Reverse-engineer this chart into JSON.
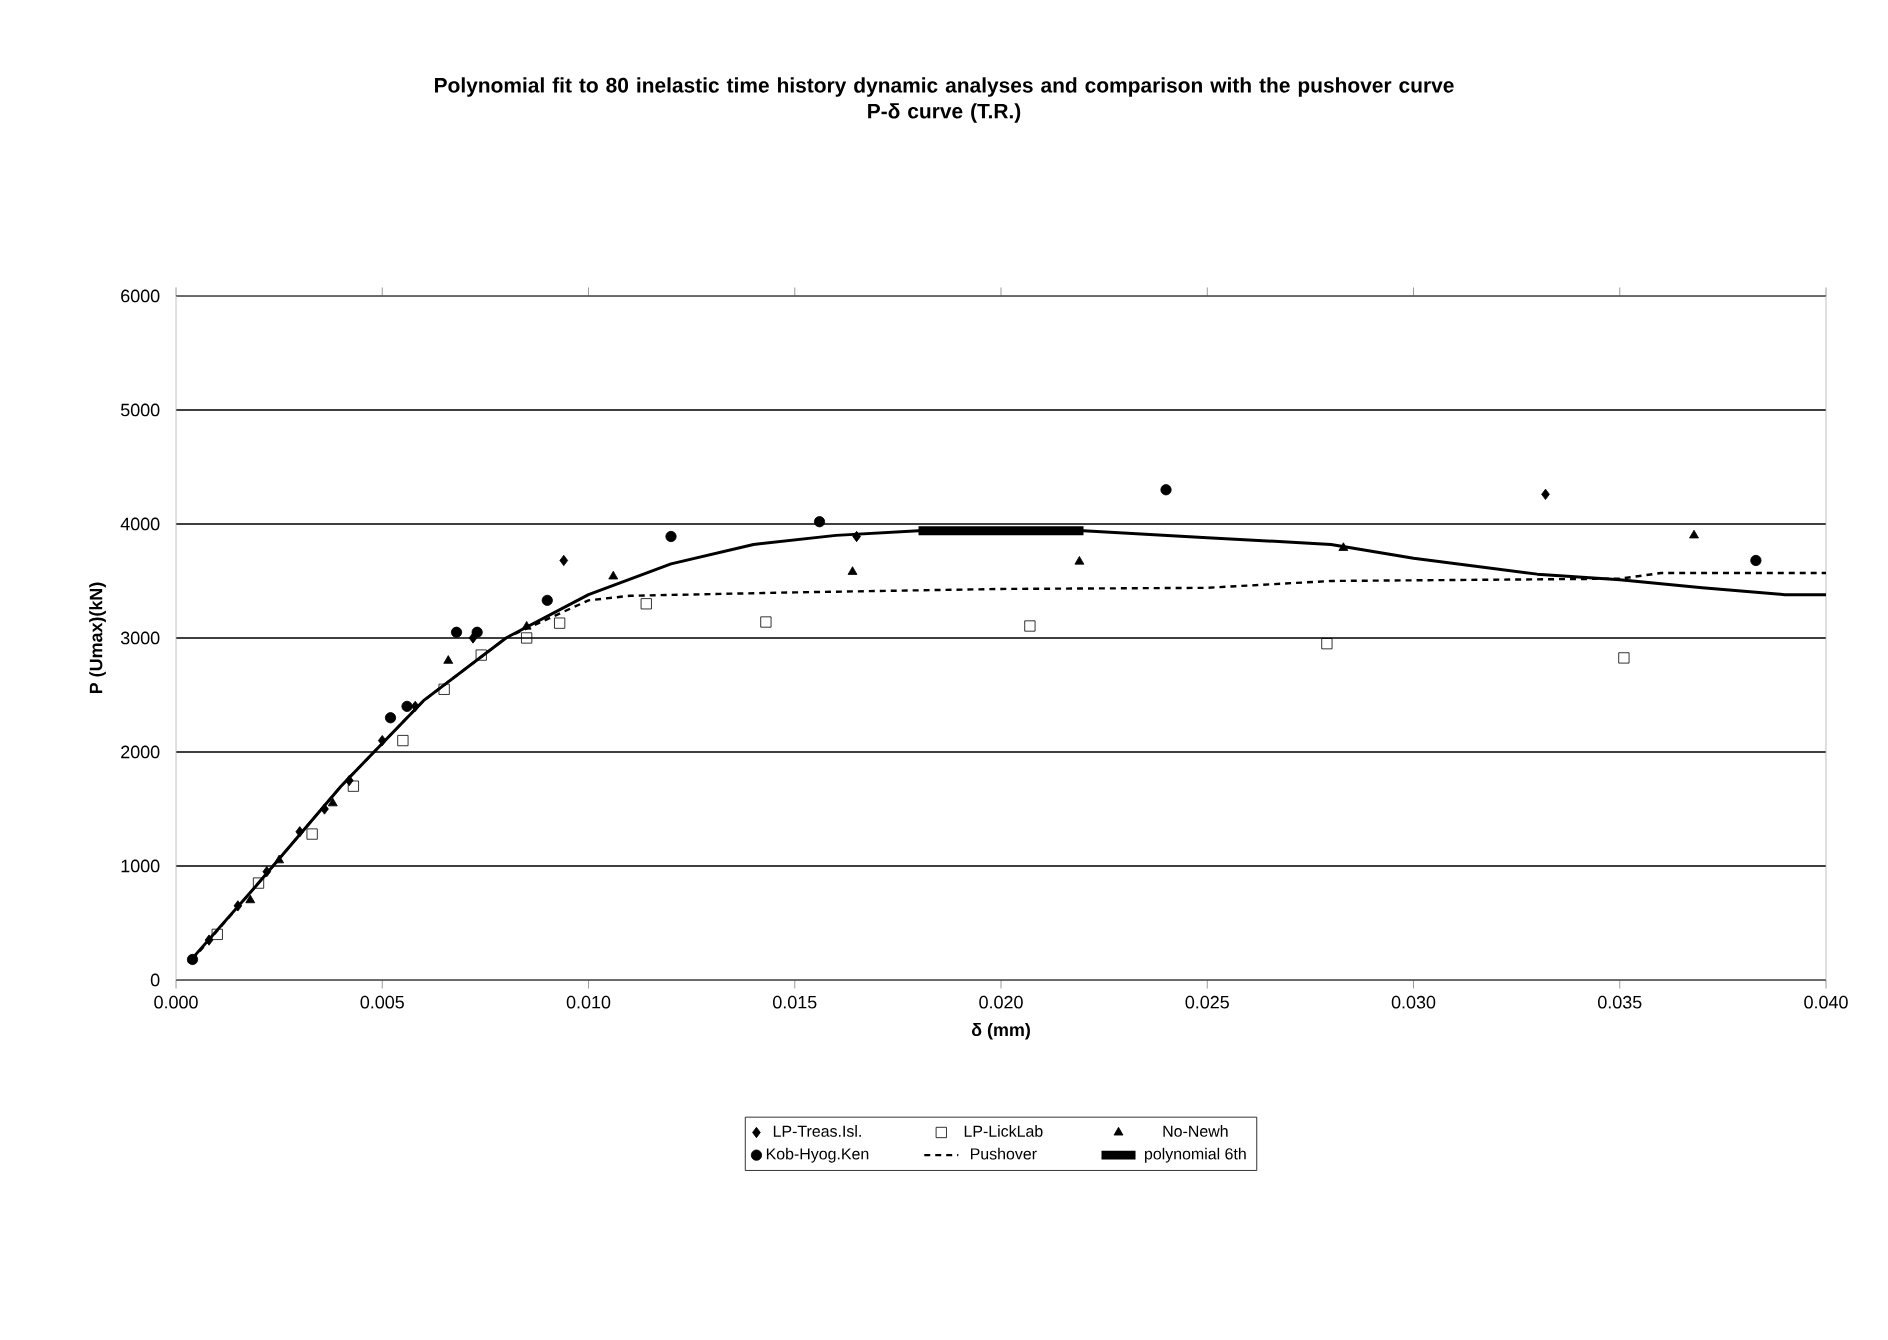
{
  "chart_data": {
    "type": "scatter",
    "title": "Polynomial fit to 80 inelastic time history dynamic analyses and comparison with the pushover curve",
    "subtitle": "P-δ curve (T.R.)",
    "xlabel": "δ (mm)",
    "ylabel": "P (Umax)(kN)",
    "xlim": [
      0,
      0.04
    ],
    "ylim": [
      0,
      6000
    ],
    "xticks": [
      {
        "value": 0,
        "label": "0.000"
      },
      {
        "value": 0.005,
        "label": "0.005"
      },
      {
        "value": 0.01,
        "label": "0.010"
      },
      {
        "value": 0.015,
        "label": "0.015"
      },
      {
        "value": 0.02,
        "label": "0.020"
      },
      {
        "value": 0.025,
        "label": "0.025"
      },
      {
        "value": 0.03,
        "label": "0.030"
      },
      {
        "value": 0.035,
        "label": "0.035"
      },
      {
        "value": 0.04,
        "label": "0.040"
      }
    ],
    "yticks": [
      0,
      1000,
      2000,
      3000,
      4000,
      5000,
      6000
    ],
    "grid": "y",
    "legend": "bottom",
    "series": [
      {
        "name": "LP-Treas.Isl.",
        "marker": "diamond",
        "color": "#000000",
        "x": [
          0.0008,
          0.0015,
          0.0022,
          0.003,
          0.0036,
          0.0042,
          0.005,
          0.0058,
          0.0072,
          0.0094,
          0.0165,
          0.0332
        ],
        "values": [
          350,
          650,
          950,
          1300,
          1500,
          1750,
          2100,
          2400,
          3000,
          3680,
          3890,
          4260
        ]
      },
      {
        "name": "LP-LickLab",
        "marker": "square",
        "color": "#000000",
        "x": [
          0.001,
          0.002,
          0.0033,
          0.0043,
          0.0055,
          0.0065,
          0.0074,
          0.0085,
          0.0093,
          0.0114,
          0.0143,
          0.0207,
          0.0279,
          0.0351
        ],
        "values": [
          400,
          850,
          1280,
          1700,
          2100,
          2550,
          2850,
          3000,
          3130,
          3300,
          3140,
          3105,
          2950,
          2825
        ]
      },
      {
        "name": "No-Newh",
        "marker": "triangle",
        "color": "#000000",
        "x": [
          0.0018,
          0.0025,
          0.0038,
          0.0066,
          0.0085,
          0.0106,
          0.0164,
          0.0219,
          0.0283,
          0.0368
        ],
        "values": [
          700,
          1050,
          1550,
          2800,
          3100,
          3540,
          3580,
          3670,
          3790,
          3900
        ]
      },
      {
        "name": "Kob-Hyog.Ken",
        "marker": "circle",
        "color": "#000000",
        "x": [
          0.0004,
          0.0052,
          0.0056,
          0.0068,
          0.0073,
          0.009,
          0.012,
          0.0156,
          0.024,
          0.0383
        ],
        "values": [
          180,
          2300,
          2400,
          3050,
          3050,
          3330,
          3890,
          4020,
          4300,
          3680
        ]
      },
      {
        "name": "Pushover",
        "type": "line",
        "line_style": "dashed",
        "marker": "none",
        "color": "#000000",
        "x": [
          0.0004,
          0.002,
          0.004,
          0.006,
          0.008,
          0.01,
          0.011,
          0.015,
          0.02,
          0.025,
          0.028,
          0.035,
          0.036,
          0.04
        ],
        "values": [
          180,
          850,
          1700,
          2450,
          3000,
          3330,
          3370,
          3400,
          3430,
          3440,
          3500,
          3520,
          3570,
          3570
        ]
      },
      {
        "name": "polynomial 6th",
        "type": "line",
        "line_style": "solid",
        "marker": "none",
        "color": "#000000",
        "x": [
          0.018,
          0.022
        ],
        "values": [
          3940,
          3940
        ]
      },
      {
        "type": "line",
        "line_style": "solid",
        "marker": "none",
        "color": "#000000",
        "x": [
          0.0003,
          0.002,
          0.004,
          0.006,
          0.008,
          0.01,
          0.012,
          0.014,
          0.016,
          0.018,
          0.022,
          0.025,
          0.028,
          0.03,
          0.033,
          0.035,
          0.037,
          0.039,
          0.04
        ],
        "values": [
          150,
          850,
          1700,
          2450,
          3000,
          3380,
          3650,
          3820,
          3900,
          3940,
          3940,
          3880,
          3820,
          3700,
          3560,
          3510,
          3440,
          3380,
          3380
        ]
      }
    ]
  }
}
